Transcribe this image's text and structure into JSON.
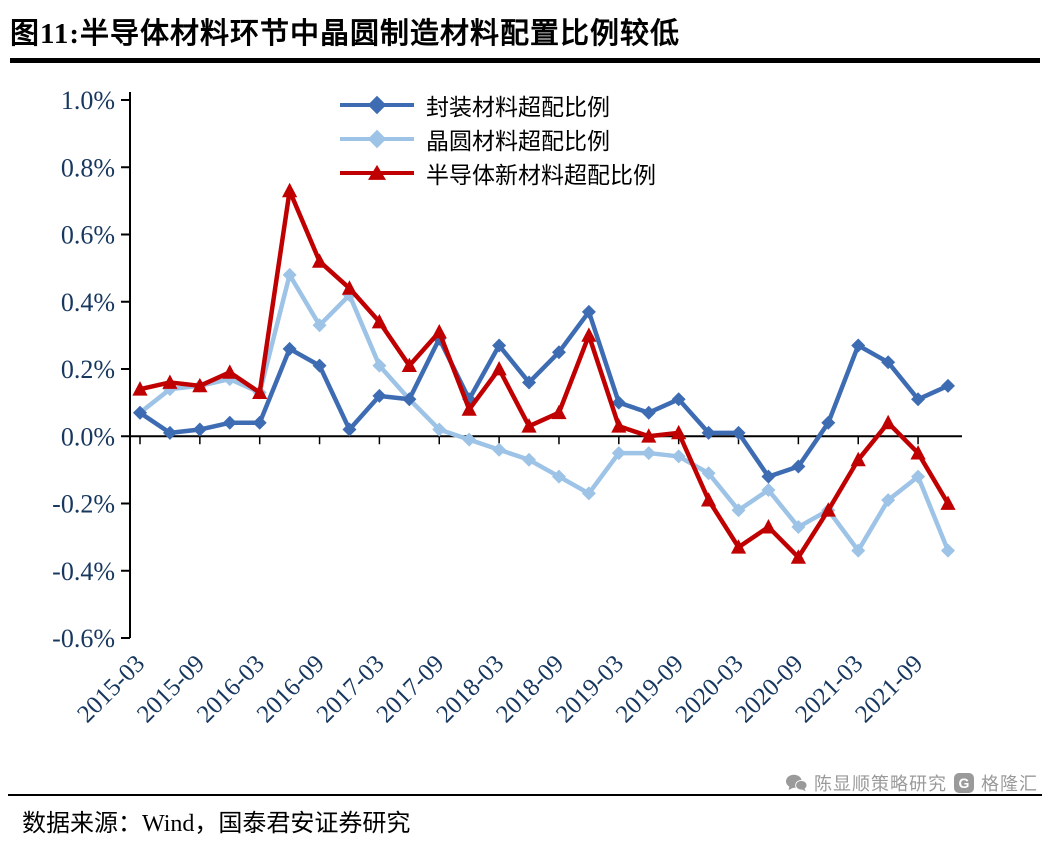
{
  "title": "图11:半导体材料环节中晶圆制造材料配置比例较低",
  "footer": {
    "source": "数据来源：Wind，国泰君安证券研究"
  },
  "watermark": {
    "account": "陈显顺策略研究",
    "platform": "格隆汇",
    "logo_letter": "G"
  },
  "chart_data": {
    "type": "line",
    "title": "图11:半导体材料环节中晶圆制造材料配置比例较低",
    "x": [
      "2015-03",
      "2015-06",
      "2015-09",
      "2015-12",
      "2016-03",
      "2016-06",
      "2016-09",
      "2016-12",
      "2017-03",
      "2017-06",
      "2017-09",
      "2017-12",
      "2018-03",
      "2018-06",
      "2018-09",
      "2018-12",
      "2019-03",
      "2019-06",
      "2019-09",
      "2019-12",
      "2020-03",
      "2020-06",
      "2020-09",
      "2020-12",
      "2021-03",
      "2021-06",
      "2021-09",
      "2021-12"
    ],
    "x_tick_labels": [
      "2015-03",
      "2015-09",
      "2016-03",
      "2016-09",
      "2017-03",
      "2017-09",
      "2018-03",
      "2018-09",
      "2019-03",
      "2019-09",
      "2020-03",
      "2020-09",
      "2021-03",
      "2021-09"
    ],
    "y_ticks": [
      "1.0%",
      "0.8%",
      "0.6%",
      "0.4%",
      "0.2%",
      "0.0%",
      "-0.2%",
      "-0.4%",
      "-0.6%"
    ],
    "ylim": [
      -0.6,
      1.0
    ],
    "y_unit": "percent",
    "grid": false,
    "legend_position": "top-center-inside",
    "axis_label_color": "#17375E",
    "series": [
      {
        "name": "封装材料超配比例",
        "color": "#3E6CB3",
        "marker": "diamond",
        "values": [
          0.07,
          0.01,
          0.02,
          0.04,
          0.04,
          0.26,
          0.21,
          0.02,
          0.12,
          0.11,
          0.29,
          0.11,
          0.27,
          0.16,
          0.25,
          0.37,
          0.1,
          0.07,
          0.11,
          0.01,
          0.01,
          -0.12,
          -0.09,
          0.04,
          0.27,
          0.22,
          0.11,
          0.15
        ]
      },
      {
        "name": "晶圆材料超配比例",
        "color": "#9DC3E6",
        "marker": "diamond",
        "values": [
          0.07,
          0.14,
          0.15,
          0.17,
          0.13,
          0.48,
          0.33,
          0.42,
          0.21,
          0.11,
          0.02,
          -0.01,
          -0.04,
          -0.07,
          -0.12,
          -0.17,
          -0.05,
          -0.05,
          -0.06,
          -0.11,
          -0.22,
          -0.16,
          -0.27,
          -0.22,
          -0.34,
          -0.19,
          -0.12,
          -0.34
        ]
      },
      {
        "name": "半导体新材料超配比例",
        "color": "#C00000",
        "marker": "triangle",
        "values": [
          0.14,
          0.16,
          0.15,
          0.19,
          0.13,
          0.73,
          0.52,
          0.44,
          0.34,
          0.21,
          0.31,
          0.08,
          0.2,
          0.03,
          0.07,
          0.3,
          0.03,
          0.0,
          0.01,
          -0.19,
          -0.33,
          -0.27,
          -0.36,
          -0.22,
          -0.07,
          0.04,
          -0.05,
          -0.2
        ]
      }
    ]
  }
}
